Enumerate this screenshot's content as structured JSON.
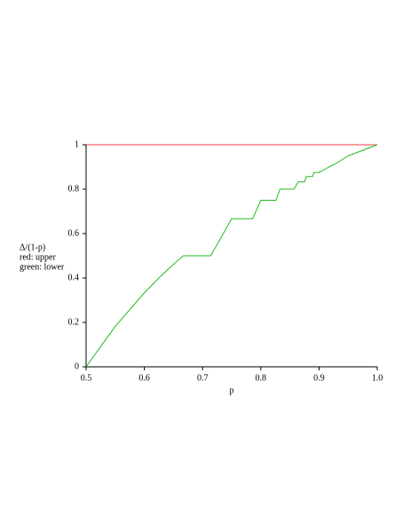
{
  "chart_data": {
    "type": "line",
    "xlabel": "p",
    "ylabel": [
      "Δ/(1-p)",
      "red: upper",
      "green: lower"
    ],
    "xlim": [
      0.5,
      1.0
    ],
    "ylim": [
      0,
      1
    ],
    "xticks": [
      0.5,
      0.6,
      0.7,
      0.8,
      0.9,
      {
        "value": 1.0,
        "label": "1.0"
      }
    ],
    "yticks": [
      0,
      0.2,
      0.4,
      0.6,
      0.8,
      1
    ],
    "series": [
      {
        "name": "upper",
        "color": "#e8414a",
        "x": [
          0.5,
          1.0
        ],
        "values": [
          1,
          1
        ]
      },
      {
        "name": "lower",
        "color": "#22bb22",
        "x": [
          0.5,
          0.55,
          0.6,
          0.625,
          0.65,
          0.667,
          0.714,
          0.75,
          0.786,
          0.8,
          0.826,
          0.833,
          0.857,
          0.864,
          0.875,
          0.878,
          0.889,
          0.891,
          0.9,
          0.91,
          0.917,
          0.93,
          0.95,
          1.0
        ],
        "values": [
          0,
          0.182,
          0.333,
          0.4,
          0.462,
          0.5,
          0.5,
          0.667,
          0.667,
          0.75,
          0.75,
          0.8,
          0.8,
          0.833,
          0.833,
          0.857,
          0.857,
          0.875,
          0.875,
          0.889,
          0.9,
          0.917,
          0.95,
          1
        ]
      }
    ]
  }
}
